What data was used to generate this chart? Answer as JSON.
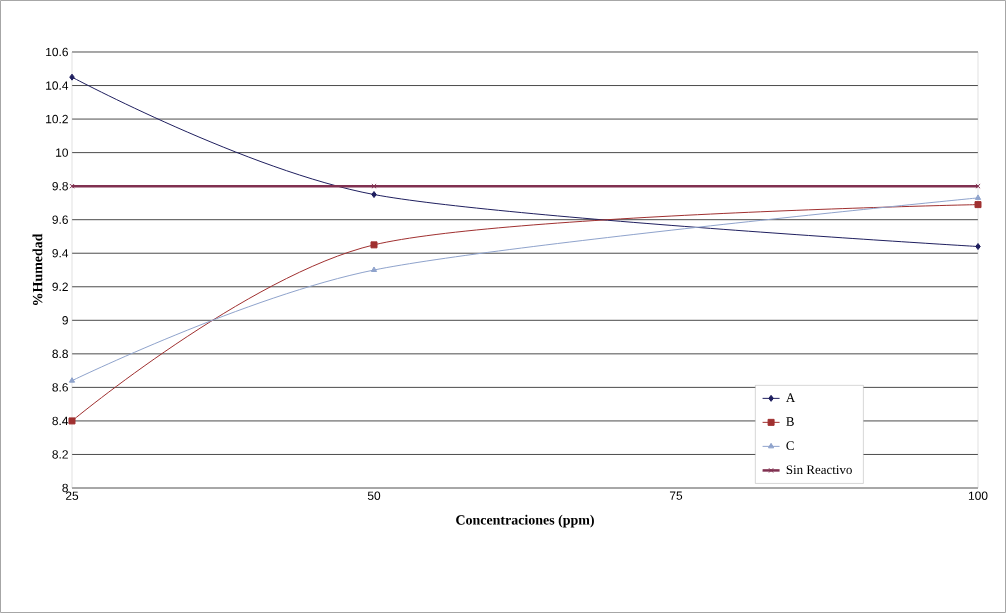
{
  "chart_data": {
    "type": "line",
    "xlabel": "Concentraciones (ppm)",
    "ylabel": "%Humedad",
    "x": [
      25,
      50,
      100
    ],
    "xlim": [
      25,
      100
    ],
    "xticks": [
      25,
      50,
      75,
      100
    ],
    "ylim": [
      8,
      10.6
    ],
    "yticks": [
      8,
      8.2,
      8.4,
      8.6,
      8.8,
      9,
      9.2,
      9.4,
      9.6,
      9.8,
      10,
      10.2,
      10.4,
      10.6
    ],
    "grid": "y",
    "legend": "bottom right",
    "series": [
      {
        "name": "A",
        "color": "#1f1f5f",
        "marker": "diamond",
        "values": [
          10.45,
          9.75,
          9.44
        ]
      },
      {
        "name": "B",
        "color": "#a03030",
        "marker": "square",
        "values": [
          8.4,
          9.45,
          9.69
        ]
      },
      {
        "name": "C",
        "color": "#8fa3cc",
        "marker": "triangle",
        "values": [
          8.64,
          9.3,
          9.73
        ]
      },
      {
        "name": "Sin Reactivo",
        "color": "#803050",
        "marker": "cross",
        "values": [
          9.8,
          9.8,
          9.8
        ]
      }
    ]
  }
}
